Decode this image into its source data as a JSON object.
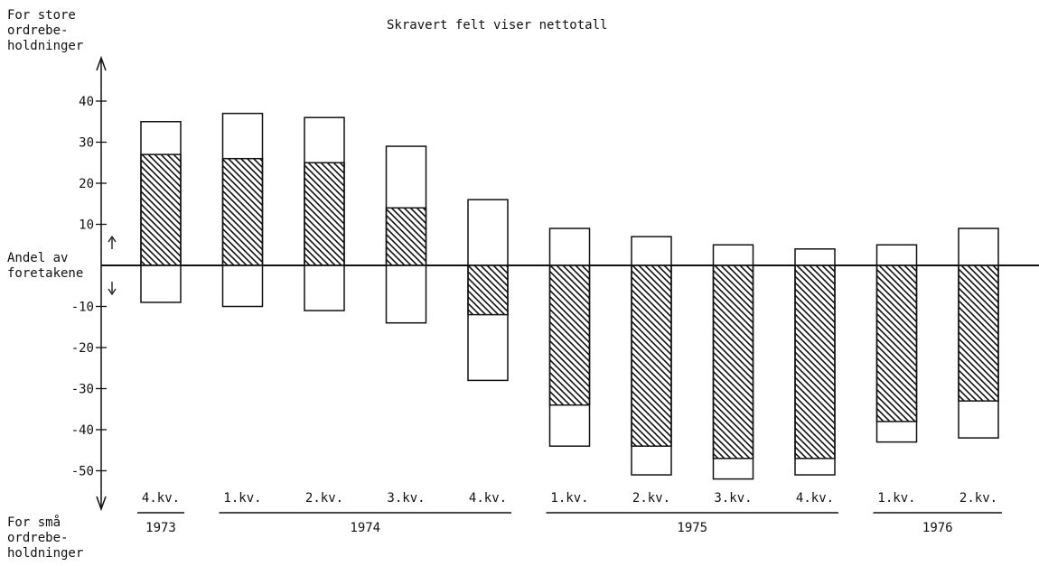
{
  "chart_data": {
    "type": "bar",
    "title": "Skravert felt viser nettotall",
    "y_axis": {
      "top_label": [
        "For store",
        "ordrebe-",
        "holdninger"
      ],
      "bottom_label": [
        "For små",
        "ordrebe-",
        "holdninger"
      ],
      "middle_label": [
        "Andel av",
        "foretakene"
      ],
      "ylim": [
        -50,
        40
      ],
      "ticks": [
        40,
        30,
        20,
        10,
        -10,
        -20,
        -30,
        -40,
        -50
      ]
    },
    "categories": [
      "4.kv.",
      "1.kv.",
      "2.kv.",
      "3.kv.",
      "4.kv.",
      "1.kv.",
      "2.kv.",
      "3.kv.",
      "4.kv.",
      "1.kv.",
      "2.kv."
    ],
    "year_groups": [
      {
        "label": "1973",
        "start": 0,
        "end": 0
      },
      {
        "label": "1974",
        "start": 1,
        "end": 4
      },
      {
        "label": "1975",
        "start": 5,
        "end": 8
      },
      {
        "label": "1976",
        "start": 9,
        "end": 10
      }
    ],
    "series": [
      {
        "name": "For store ordrebeholdninger",
        "values": [
          35,
          37,
          36,
          29,
          16,
          9,
          7,
          5,
          4,
          5,
          9
        ]
      },
      {
        "name": "For små ordrebeholdninger",
        "values": [
          -9,
          -10,
          -11,
          -14,
          -28,
          -44,
          -51,
          -52,
          -51,
          -43,
          -42
        ]
      },
      {
        "name": "Nettotall",
        "values": [
          27,
          26,
          25,
          14,
          -12,
          -34,
          -44,
          -47,
          -47,
          -38,
          -33
        ]
      }
    ],
    "grid": false,
    "legend": "none"
  }
}
